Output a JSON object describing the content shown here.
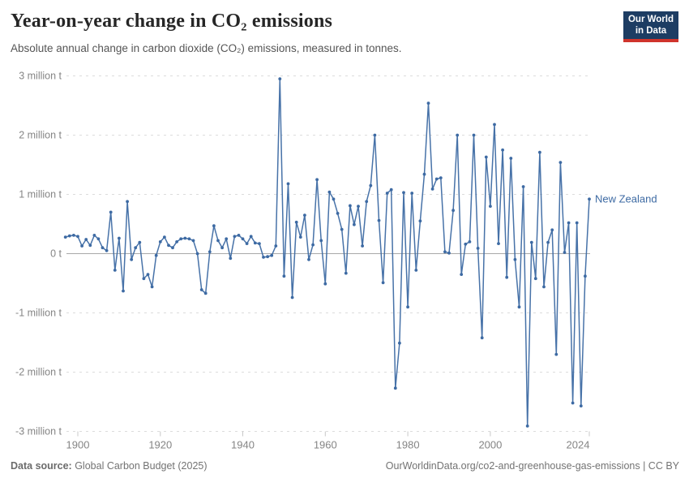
{
  "header": {
    "title": "Year-on-year change in CO₂ emissions",
    "subtitle": "Absolute annual change in carbon dioxide (CO₂) emissions, measured in tonnes.",
    "logo": {
      "line1": "Our World",
      "line2": "in Data",
      "bg_color": "#1d3d63",
      "bar_color": "#d0342c"
    }
  },
  "chart_data": {
    "type": "line",
    "title": "Year-on-year change in CO₂ emissions",
    "ylabel": "",
    "xlabel": "",
    "unit": "t",
    "grid": true,
    "legend_position": "end-of-line",
    "ylim": [
      -3,
      3
    ],
    "xlim": [
      1897,
      2024
    ],
    "x_ticks": [
      1900,
      1920,
      1940,
      1960,
      1980,
      2000,
      2024
    ],
    "y_ticks": [
      {
        "value": 3,
        "label": "3 million t"
      },
      {
        "value": 2,
        "label": "2 million t"
      },
      {
        "value": 1,
        "label": "1 million t"
      },
      {
        "value": 0,
        "label": "0 t"
      },
      {
        "value": -1,
        "label": "-1 million t"
      },
      {
        "value": -2,
        "label": "-2 million t"
      },
      {
        "value": -3,
        "label": "-3 million t"
      }
    ],
    "series": [
      {
        "name": "New Zealand",
        "color": "#3d6aa3",
        "x": [
          1897,
          1898,
          1899,
          1900,
          1901,
          1902,
          1903,
          1904,
          1905,
          1906,
          1907,
          1908,
          1909,
          1910,
          1911,
          1912,
          1913,
          1914,
          1915,
          1916,
          1917,
          1918,
          1919,
          1920,
          1921,
          1922,
          1923,
          1924,
          1925,
          1926,
          1927,
          1928,
          1929,
          1930,
          1931,
          1932,
          1933,
          1934,
          1935,
          1936,
          1937,
          1938,
          1939,
          1940,
          1941,
          1942,
          1943,
          1944,
          1945,
          1946,
          1947,
          1948,
          1949,
          1950,
          1951,
          1952,
          1953,
          1954,
          1955,
          1956,
          1957,
          1958,
          1959,
          1960,
          1961,
          1962,
          1963,
          1964,
          1965,
          1966,
          1967,
          1968,
          1969,
          1970,
          1971,
          1972,
          1973,
          1974,
          1975,
          1976,
          1977,
          1978,
          1979,
          1980,
          1981,
          1982,
          1983,
          1984,
          1985,
          1986,
          1987,
          1988,
          1989,
          1990,
          1991,
          1992,
          1993,
          1994,
          1995,
          1996,
          1997,
          1998,
          1999,
          2000,
          2001,
          2002,
          2003,
          2004,
          2005,
          2006,
          2007,
          2008,
          2009,
          2010,
          2011,
          2012,
          2013,
          2014,
          2015,
          2016,
          2017,
          2018,
          2019,
          2020,
          2021,
          2022,
          2023,
          2024
        ],
        "values": [
          0.28,
          0.3,
          0.31,
          0.29,
          0.13,
          0.24,
          0.14,
          0.31,
          0.25,
          0.1,
          0.05,
          0.7,
          -0.28,
          0.26,
          -0.63,
          0.88,
          -0.1,
          0.1,
          0.19,
          -0.42,
          -0.35,
          -0.56,
          -0.03,
          0.2,
          0.28,
          0.14,
          0.1,
          0.2,
          0.25,
          0.26,
          0.25,
          0.22,
          0.0,
          -0.61,
          -0.67,
          0.03,
          0.47,
          0.22,
          0.1,
          0.25,
          -0.08,
          0.29,
          0.31,
          0.25,
          0.17,
          0.29,
          0.18,
          0.17,
          -0.06,
          -0.05,
          -0.03,
          0.13,
          2.95,
          -0.38,
          1.18,
          -0.74,
          0.53,
          0.28,
          0.65,
          -0.1,
          0.15,
          1.25,
          0.22,
          -0.51,
          1.04,
          0.92,
          0.68,
          0.41,
          -0.33,
          0.81,
          0.49,
          0.8,
          0.13,
          0.88,
          1.15,
          2.0,
          0.56,
          -0.49,
          1.02,
          1.08,
          -2.27,
          -1.51,
          1.03,
          -0.9,
          1.02,
          -0.28,
          0.55,
          1.34,
          2.54,
          1.09,
          1.26,
          1.28,
          0.03,
          0.01,
          0.73,
          2.0,
          -0.35,
          0.16,
          0.2,
          2.0,
          0.09,
          -1.42,
          1.63,
          0.8,
          2.18,
          0.17,
          1.75,
          -0.4,
          1.61,
          -0.1,
          -0.9,
          1.13,
          -2.91,
          0.19,
          -0.42,
          1.71,
          -0.56,
          0.19,
          0.4,
          -1.7,
          1.54,
          0.02,
          0.52,
          -2.52,
          0.52,
          -2.57,
          -0.38,
          0.92
        ]
      }
    ],
    "colors": {
      "gridline": "#dcdcdc",
      "zero_line": "#a9a9a9",
      "axis_tick": "#c8c8c8",
      "axis_label": "#858585"
    }
  },
  "footer": {
    "datasource_label": "Data source:",
    "datasource_value": " Global Carbon Budget (2025)",
    "credit": "OurWorldinData.org/co2-and-greenhouse-gas-emissions | CC BY"
  }
}
